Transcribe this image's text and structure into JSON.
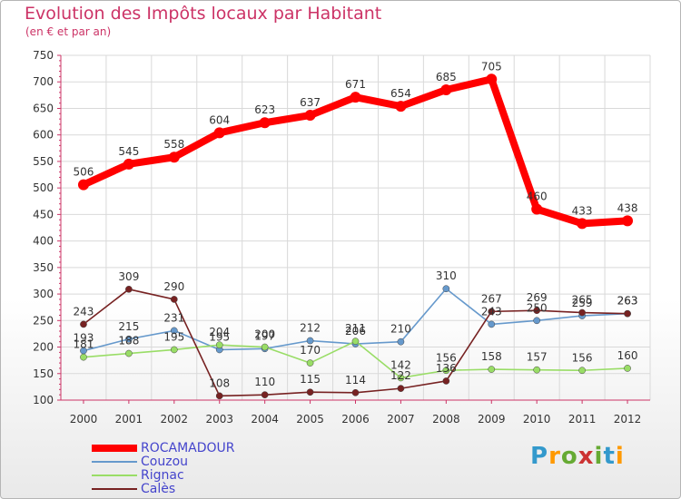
{
  "title": "Evolution des Impôts locaux par Habitant",
  "subtitle": "(en € et par an)",
  "logo": {
    "letters": [
      "P",
      "r",
      "o",
      "x",
      "i",
      "t",
      "i"
    ],
    "colors": [
      "#3399cc",
      "#ff9900",
      "#66aa33",
      "#cc3333",
      "#66aa33",
      "#3399cc",
      "#ff9900"
    ]
  },
  "chart_data": {
    "type": "line",
    "title": "Evolution des Impôts locaux par Habitant",
    "subtitle": "(en € et par an)",
    "xlabel": "",
    "ylabel": "",
    "x": [
      "2000",
      "2001",
      "2002",
      "2003",
      "2004",
      "2005",
      "2006",
      "2007",
      "2008",
      "2009",
      "2010",
      "2011",
      "2012"
    ],
    "ylim": [
      100,
      750
    ],
    "yticks": [
      "100",
      "150",
      "200",
      "250",
      "300",
      "350",
      "400",
      "450",
      "500",
      "550",
      "600",
      "650",
      "700",
      "750"
    ],
    "grid": true,
    "legend_position": "bottom-left",
    "series": [
      {
        "name": "ROCAMADOUR",
        "color": "#ff0000",
        "values": [
          506,
          545,
          558,
          604,
          623,
          637,
          671,
          654,
          685,
          705,
          460,
          433,
          438
        ]
      },
      {
        "name": "Couzou",
        "color": "#6699cc",
        "values": [
          193,
          215,
          231,
          195,
          197,
          212,
          206,
          210,
          310,
          243,
          250,
          259,
          263
        ]
      },
      {
        "name": "Rignac",
        "color": "#99dd66",
        "values": [
          181,
          188,
          195,
          204,
          200,
          170,
          211,
          142,
          156,
          158,
          157,
          156,
          160
        ]
      },
      {
        "name": "Calès",
        "color": "#772222",
        "values": [
          243,
          309,
          290,
          108,
          110,
          115,
          114,
          122,
          136,
          267,
          269,
          265,
          263
        ]
      }
    ]
  }
}
